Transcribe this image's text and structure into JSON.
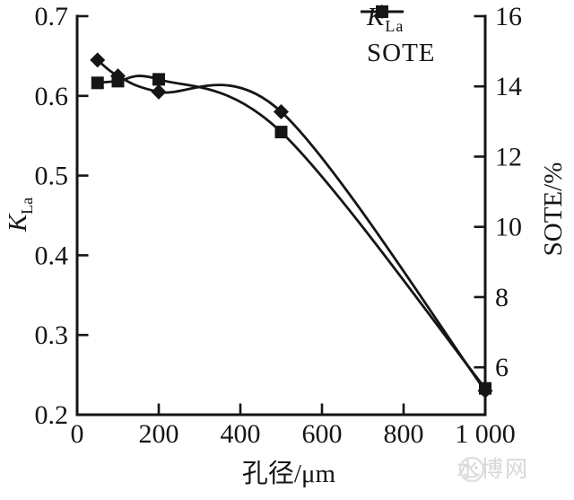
{
  "figure": {
    "background": "#ffffff",
    "ink": "#151515"
  },
  "legend": {
    "items": [
      {
        "id": "kla",
        "marker": "diamond",
        "label_main": "K",
        "label_sub": "La"
      },
      {
        "id": "sote",
        "marker": "square",
        "label": "SOTE"
      }
    ]
  },
  "chart_data": {
    "type": "line",
    "smooth": true,
    "grid": false,
    "legend_position": "top-right",
    "x": [
      50,
      100,
      200,
      500,
      1000
    ],
    "series": [
      {
        "name": "KLa",
        "axis": "left",
        "marker": "diamond",
        "values": [
          0.645,
          0.625,
          0.605,
          0.58,
          0.23
        ]
      },
      {
        "name": "SOTE",
        "axis": "right",
        "marker": "square",
        "values": [
          14.1,
          14.15,
          14.2,
          12.7,
          5.4
        ]
      }
    ],
    "xlabel": "孔径/μm",
    "xlim": [
      0,
      1000
    ],
    "x_ticks": {
      "values": [
        0,
        200,
        400,
        600,
        800,
        1000
      ],
      "labels": [
        "0",
        "200",
        "400",
        "600",
        "800",
        "1 000"
      ]
    },
    "left_axis": {
      "label_main": "K",
      "label_sub": "La",
      "range": [
        0.2,
        0.7
      ],
      "ticks": [
        0.7,
        0.6,
        0.5,
        0.4,
        0.3,
        0.2
      ],
      "tick_labels": [
        "0.7",
        "0.6",
        "0.5",
        "0.4",
        "0.3",
        "0.2"
      ]
    },
    "right_axis": {
      "label": "SOTE/%",
      "range": [
        4.65,
        16
      ],
      "ticks": [
        16,
        14,
        12,
        10,
        8,
        6
      ],
      "tick_labels": [
        "16",
        "14",
        "12",
        "10",
        "8",
        "6"
      ]
    },
    "line_color": "#151515"
  },
  "watermark": {
    "text": "水博网"
  }
}
